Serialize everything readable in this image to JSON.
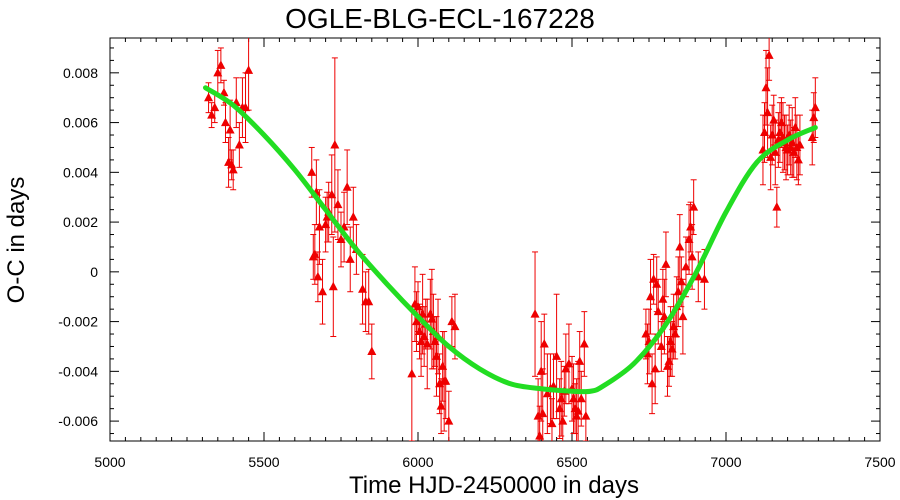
{
  "chart_data": {
    "type": "scatter",
    "title": "OGLE-BLG-ECL-167228",
    "xlabel": "Time HJD-2450000 in days",
    "ylabel": "O-C in days",
    "xlim": [
      5000,
      7500
    ],
    "ylim": [
      -0.0068,
      0.0094
    ],
    "xticks": [
      5000,
      5500,
      6000,
      6500,
      7000,
      7500
    ],
    "xtick_labels": [
      "5000",
      "5500",
      "6000",
      "6500",
      "7000",
      "7500"
    ],
    "yticks": [
      -0.006,
      -0.004,
      -0.002,
      0,
      0.002,
      0.004,
      0.006,
      0.008
    ],
    "ytick_labels": [
      "-0.006",
      "-0.004",
      "-0.002",
      "0",
      "0.002",
      "0.004",
      "0.006",
      "0.008"
    ],
    "grid": false,
    "colors": {
      "points": "#ee0000",
      "fit": "#22dd22"
    },
    "series": [
      {
        "kind": "points-with-errorbars",
        "marker": "triangle",
        "points": [
          [
            5320,
            0.007,
            0.0006
          ],
          [
            5330,
            0.0063,
            0.0005
          ],
          [
            5340,
            0.0066,
            0.0006
          ],
          [
            5350,
            0.008,
            0.0009
          ],
          [
            5360,
            0.0083,
            0.0007
          ],
          [
            5370,
            0.0072,
            0.0005
          ],
          [
            5375,
            0.006,
            0.0008
          ],
          [
            5385,
            0.0044,
            0.001
          ],
          [
            5390,
            0.0057,
            0.0012
          ],
          [
            5395,
            0.0043,
            0.0006
          ],
          [
            5400,
            0.0041,
            0.0008
          ],
          [
            5410,
            0.0068,
            0.001
          ],
          [
            5420,
            0.0051,
            0.0009
          ],
          [
            5430,
            0.0066,
            0.0012
          ],
          [
            5440,
            0.0066,
            0.0014
          ],
          [
            5450,
            0.0081,
            0.0016
          ],
          [
            5655,
            0.004,
            0.001
          ],
          [
            5660,
            0.0006,
            0.0009
          ],
          [
            5665,
            0.0007,
            0.0012
          ],
          [
            5670,
            0.0032,
            0.0013
          ],
          [
            5675,
            -0.0002,
            0.001
          ],
          [
            5680,
            0.0018,
            0.0015
          ],
          [
            5690,
            -0.0008,
            0.0013
          ],
          [
            5700,
            0.0019,
            0.0011
          ],
          [
            5705,
            0.0022,
            0.001
          ],
          [
            5710,
            0.0024,
            0.0012
          ],
          [
            5720,
            0.0031,
            0.0016
          ],
          [
            5725,
            -0.0006,
            0.002
          ],
          [
            5730,
            0.0051,
            0.0035
          ],
          [
            5740,
            0.0027,
            0.0014
          ],
          [
            5750,
            0.0013,
            0.0011
          ],
          [
            5760,
            0.0018,
            0.0014
          ],
          [
            5770,
            0.0034,
            0.0015
          ],
          [
            5780,
            0.0005,
            0.0013
          ],
          [
            5790,
            0.0022,
            0.0012
          ],
          [
            5800,
            0.0009,
            0.001
          ],
          [
            5820,
            -0.0007,
            0.0014
          ],
          [
            5830,
            -0.0012,
            0.0012
          ],
          [
            5840,
            -0.0012,
            0.0013
          ],
          [
            5850,
            -0.0032,
            0.0011
          ],
          [
            5980,
            -0.0041,
            0.0027
          ],
          [
            5990,
            -0.0013,
            0.0015
          ],
          [
            5995,
            -0.002,
            0.0012
          ],
          [
            6000,
            -0.0014,
            0.001
          ],
          [
            6005,
            -0.0024,
            0.0011
          ],
          [
            6010,
            -0.0028,
            0.0014
          ],
          [
            6015,
            -0.0017,
            0.0016
          ],
          [
            6020,
            -0.0026,
            0.0012
          ],
          [
            6025,
            -0.0021,
            0.001
          ],
          [
            6030,
            -0.0029,
            0.0018
          ],
          [
            6040,
            -0.0017,
            0.0014
          ],
          [
            6045,
            -0.0019,
            0.002
          ],
          [
            6050,
            -0.0024,
            0.0015
          ],
          [
            6055,
            -0.0028,
            0.001
          ],
          [
            6060,
            -0.0034,
            0.0016
          ],
          [
            6065,
            -0.0026,
            0.0015
          ],
          [
            6070,
            -0.0045,
            0.0012
          ],
          [
            6075,
            -0.0054,
            0.0011
          ],
          [
            6080,
            -0.0038,
            0.0014
          ],
          [
            6085,
            -0.0044,
            0.002
          ],
          [
            6090,
            -0.0044,
            0.0015
          ],
          [
            6100,
            -0.006,
            0.0012
          ],
          [
            6110,
            -0.002,
            0.001
          ],
          [
            6120,
            -0.0022,
            0.0013
          ],
          [
            6380,
            -0.0017,
            0.0025
          ],
          [
            6390,
            -0.0058,
            0.0015
          ],
          [
            6395,
            -0.0066,
            0.0012
          ],
          [
            6400,
            -0.004,
            0.002
          ],
          [
            6405,
            -0.0057,
            0.0018
          ],
          [
            6410,
            -0.0029,
            0.0012
          ],
          [
            6420,
            -0.0049,
            0.0016
          ],
          [
            6430,
            -0.0047,
            0.0014
          ],
          [
            6435,
            -0.0061,
            0.001
          ],
          [
            6440,
            -0.0046,
            0.0013
          ],
          [
            6450,
            -0.0034,
            0.0025
          ],
          [
            6460,
            -0.0055,
            0.0012
          ],
          [
            6465,
            -0.0051,
            0.0015
          ],
          [
            6470,
            -0.006,
            0.0011
          ],
          [
            6475,
            -0.0048,
            0.001
          ],
          [
            6480,
            -0.0039,
            0.0014
          ],
          [
            6490,
            -0.0037,
            0.0016
          ],
          [
            6500,
            -0.0047,
            0.0013
          ],
          [
            6505,
            -0.0051,
            0.0014
          ],
          [
            6510,
            -0.0055,
            0.001
          ],
          [
            6515,
            -0.0058,
            0.0015
          ],
          [
            6520,
            -0.0056,
            0.002
          ],
          [
            6525,
            -0.0036,
            0.0012
          ],
          [
            6530,
            -0.0051,
            0.0011
          ],
          [
            6540,
            -0.0029,
            0.0013
          ],
          [
            6545,
            -0.0058,
            0.001
          ],
          [
            6740,
            -0.0025,
            0.001
          ],
          [
            6745,
            -0.0033,
            0.0012
          ],
          [
            6750,
            -0.0028,
            0.0013
          ],
          [
            6755,
            -0.001,
            0.0015
          ],
          [
            6760,
            -0.0045,
            0.0012
          ],
          [
            6765,
            -0.0003,
            0.001
          ],
          [
            6770,
            -0.0039,
            0.0014
          ],
          [
            6775,
            -0.0005,
            0.0011
          ],
          [
            6780,
            -0.0016,
            0.0013
          ],
          [
            6790,
            -0.003,
            0.001
          ],
          [
            6795,
            -0.0011,
            0.0012
          ],
          [
            6800,
            -0.0018,
            0.0015
          ],
          [
            6805,
            0.0003,
            0.0013
          ],
          [
            6810,
            -0.0038,
            0.0012
          ],
          [
            6815,
            -0.0036,
            0.001
          ],
          [
            6820,
            -0.0028,
            0.0014
          ],
          [
            6825,
            -0.0031,
            0.0011
          ],
          [
            6830,
            -0.0022,
            0.0013
          ],
          [
            6835,
            -0.0025,
            0.001
          ],
          [
            6840,
            -0.0014,
            0.0012
          ],
          [
            6845,
            -0.0008,
            0.0014
          ],
          [
            6850,
            0.001,
            0.0013
          ],
          [
            6855,
            -0.0004,
            0.001
          ],
          [
            6860,
            -0.0018,
            0.0015
          ],
          [
            6870,
            0.0002,
            0.0012
          ],
          [
            6880,
            0.0013,
            0.0014
          ],
          [
            6885,
            0.0018,
            0.001
          ],
          [
            6890,
            0.0006,
            0.0013
          ],
          [
            6895,
            0.0026,
            0.0011
          ],
          [
            6910,
            -0.0002,
            0.001
          ],
          [
            6930,
            -0.0003,
            0.0012
          ],
          [
            7120,
            0.0049,
            0.0014
          ],
          [
            7125,
            0.0056,
            0.0012
          ],
          [
            7130,
            0.0074,
            0.0015
          ],
          [
            7135,
            0.0064,
            0.0018
          ],
          [
            7140,
            0.0087,
            0.001
          ],
          [
            7145,
            0.0046,
            0.0013
          ],
          [
            7150,
            0.0055,
            0.0012
          ],
          [
            7155,
            0.0061,
            0.001
          ],
          [
            7160,
            0.0048,
            0.0013
          ],
          [
            7165,
            0.0026,
            0.0008
          ],
          [
            7170,
            0.0053,
            0.0011
          ],
          [
            7175,
            0.0056,
            0.0012
          ],
          [
            7180,
            0.006,
            0.001
          ],
          [
            7185,
            0.0054,
            0.0014
          ],
          [
            7190,
            0.0052,
            0.0011
          ],
          [
            7195,
            0.005,
            0.0013
          ],
          [
            7200,
            0.0049,
            0.001
          ],
          [
            7205,
            0.0055,
            0.0012
          ],
          [
            7210,
            0.005,
            0.0011
          ],
          [
            7215,
            0.0052,
            0.0014
          ],
          [
            7220,
            0.0048,
            0.001
          ],
          [
            7225,
            0.0058,
            0.0012
          ],
          [
            7230,
            0.005,
            0.0013
          ],
          [
            7235,
            0.0045,
            0.001
          ],
          [
            7240,
            0.0051,
            0.0012
          ],
          [
            7280,
            0.0054,
            0.0011
          ],
          [
            7285,
            0.0062,
            0.001
          ],
          [
            7290,
            0.0066,
            0.0012
          ]
        ]
      },
      {
        "kind": "fit-curve",
        "x": [
          5310,
          5400,
          5500,
          5600,
          5700,
          5800,
          5900,
          6000,
          6100,
          6200,
          6300,
          6400,
          6500,
          6560,
          6600,
          6700,
          6800,
          6900,
          7000,
          7100,
          7200,
          7290
        ],
        "y": [
          0.0074,
          0.0067,
          0.0055,
          0.0041,
          0.0025,
          0.0009,
          -0.0005,
          -0.0018,
          -0.003,
          -0.0039,
          -0.0045,
          -0.0047,
          -0.0048,
          -0.0048,
          -0.0046,
          -0.0037,
          -0.0022,
          -0.0001,
          0.0024,
          0.0044,
          0.0053,
          0.0058
        ]
      }
    ]
  }
}
